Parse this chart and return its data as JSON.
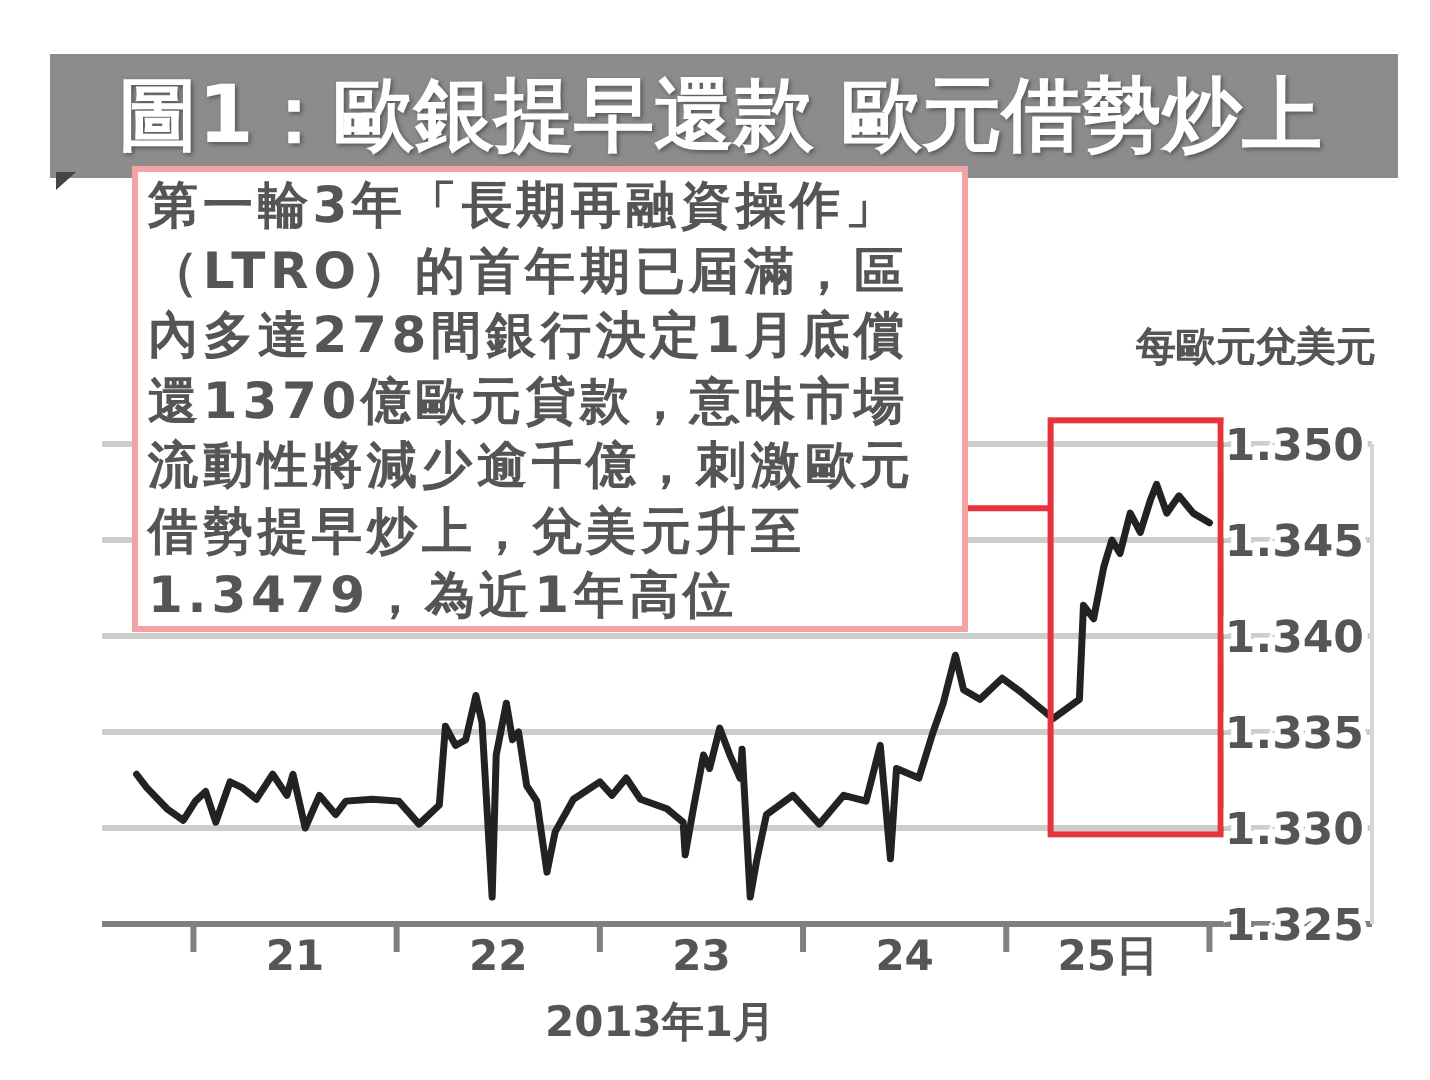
{
  "chart_data": {
    "type": "line",
    "title": "圖1：歐銀提早還款 歐元借勢炒上",
    "xlabel": "2013年1月",
    "ylabel": "每歐元兌美元",
    "annotations": [
      "第一輪3年「長期再融資操作」（LTRO）的首年期已屆滿，區內多達278間銀行決定1月底償還1370億歐元貸款，意味市場流動性將減少逾千億，刺激歐元借勢提早炒上，兌美元升至1.3479，為近1年高位"
    ],
    "x": [
      20.72,
      20.77,
      20.87,
      20.95,
      21.01,
      21.06,
      21.11,
      21.18,
      21.24,
      21.31,
      21.39,
      21.46,
      21.49,
      21.55,
      21.62,
      21.7,
      21.75,
      21.88,
      22.01,
      22.11,
      22.21,
      22.24,
      22.29,
      22.34,
      22.39,
      22.42,
      22.47,
      22.49,
      22.54,
      22.57,
      22.6,
      22.64,
      22.69,
      22.74,
      22.78,
      22.87,
      23.0,
      23.06,
      23.13,
      23.2,
      23.33,
      23.41,
      23.42,
      23.46,
      23.51,
      23.54,
      23.59,
      23.64,
      23.69,
      23.7,
      23.74,
      23.77,
      23.82,
      23.95,
      24.08,
      24.2,
      24.31,
      24.38,
      24.43,
      24.46,
      24.57,
      24.64,
      24.69,
      24.75,
      24.79,
      24.87,
      24.98,
      25.07,
      25.15,
      25.23,
      25.36,
      25.38,
      25.43,
      25.48,
      25.52,
      25.56,
      25.61,
      25.66,
      25.71,
      25.74,
      25.79,
      25.85,
      25.92,
      26.0
    ],
    "values": [
      1.3328,
      1.3321,
      1.331,
      1.3304,
      1.3314,
      1.3319,
      1.3303,
      1.3324,
      1.3321,
      1.3315,
      1.3328,
      1.3317,
      1.3328,
      1.33,
      1.3317,
      1.3307,
      1.3314,
      1.3315,
      1.3314,
      1.3302,
      1.3312,
      1.3353,
      1.3343,
      1.3346,
      1.3369,
      1.3355,
      1.3264,
      1.3338,
      1.3365,
      1.3346,
      1.335,
      1.3322,
      1.3314,
      1.3277,
      1.3298,
      1.3315,
      1.3324,
      1.3317,
      1.3326,
      1.3315,
      1.331,
      1.3303,
      1.3286,
      1.331,
      1.3338,
      1.3331,
      1.3352,
      1.3338,
      1.3326,
      1.3341,
      1.3264,
      1.3282,
      1.3307,
      1.3317,
      1.3302,
      1.3317,
      1.3314,
      1.3343,
      1.3284,
      1.3331,
      1.3326,
      1.335,
      1.3365,
      1.339,
      1.3372,
      1.3367,
      1.3378,
      1.3371,
      1.3364,
      1.3357,
      1.3367,
      1.3416,
      1.3409,
      1.3436,
      1.345,
      1.3443,
      1.3464,
      1.3454,
      1.3471,
      1.3479,
      1.3464,
      1.3473,
      1.3464,
      1.3459
    ],
    "color": "#222222",
    "xlim": [
      20.55,
      26.8
    ],
    "xticks": [
      {
        "value": 21,
        "label": null
      },
      {
        "value": 21.5,
        "label": "21"
      },
      {
        "value": 22,
        "label": null
      },
      {
        "value": 22.5,
        "label": "22"
      },
      {
        "value": 23,
        "label": null
      },
      {
        "value": 23.5,
        "label": "23"
      },
      {
        "value": 24,
        "label": null
      },
      {
        "value": 24.5,
        "label": "24"
      },
      {
        "value": 25,
        "label": null
      },
      {
        "value": 25.5,
        "label": "25日"
      },
      {
        "value": 26,
        "label": null
      }
    ],
    "ylim": [
      1.325,
      1.35
    ],
    "yticks": [
      {
        "value": 1.325,
        "label": "1.325"
      },
      {
        "value": 1.33,
        "label": "1.330"
      },
      {
        "value": 1.335,
        "label": "1.335"
      },
      {
        "value": 1.34,
        "label": "1.340"
      },
      {
        "value": 1.345,
        "label": "1.345"
      },
      {
        "value": 1.35,
        "label": "1.350"
      }
    ],
    "grid": "y"
  }
}
